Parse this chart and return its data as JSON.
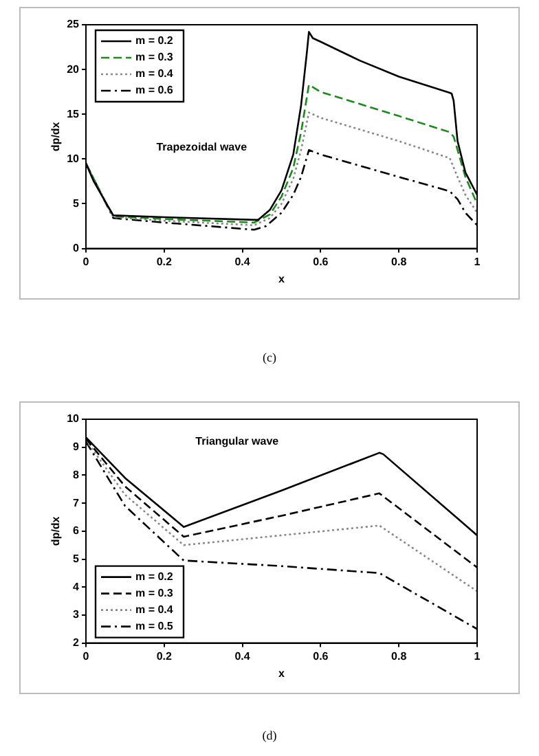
{
  "chart_data": [
    {
      "type": "line",
      "xlabel": "x",
      "ylabel": "dp/dx",
      "annotations": [
        "Trapezoidal wave",
        "(c)"
      ],
      "xlim": [
        0,
        1
      ],
      "ylim": [
        0,
        25
      ],
      "xticks": [
        0,
        0.2,
        0.4,
        0.6,
        0.8,
        1
      ],
      "yticks": [
        0,
        5,
        10,
        15,
        20,
        25
      ],
      "grid": false,
      "legend": "top left",
      "marker": "none",
      "series": [
        {
          "name": "m = 0.2",
          "color": "#000000",
          "line_style": "solid",
          "x": [
            0,
            0.02,
            0.05,
            0.07,
            0.2,
            0.43,
            0.44,
            0.47,
            0.5,
            0.53,
            0.55,
            0.565,
            0.57,
            0.58,
            0.6,
            0.7,
            0.8,
            0.93,
            0.935,
            0.94,
            0.95,
            0.97,
            1
          ],
          "values": [
            9.5,
            7.5,
            5.2,
            3.7,
            3.5,
            3.2,
            3.2,
            4.3,
            6.5,
            10.5,
            16,
            22,
            24.2,
            23.5,
            23.1,
            21,
            19.2,
            17.4,
            17.3,
            16.5,
            12,
            8.5,
            6
          ]
        },
        {
          "name": "m = 0.3",
          "color": "#1a8a1a",
          "line_style": "dashed",
          "x": [
            0,
            0.05,
            0.07,
            0.2,
            0.43,
            0.47,
            0.5,
            0.53,
            0.55,
            0.57,
            0.6,
            0.8,
            0.93,
            0.94,
            0.97,
            1
          ],
          "values": [
            9.5,
            5.2,
            3.6,
            3.3,
            2.9,
            3.8,
            5.8,
            9,
            13,
            18.3,
            17.5,
            14.8,
            13,
            12.5,
            8,
            5
          ]
        },
        {
          "name": "m = 0.4",
          "color": "#888888",
          "line_style": "dotted",
          "x": [
            0,
            0.07,
            0.2,
            0.43,
            0.47,
            0.5,
            0.53,
            0.55,
            0.57,
            0.6,
            0.8,
            0.93,
            0.95,
            0.97,
            1
          ],
          "values": [
            9.5,
            3.5,
            3.1,
            2.6,
            3.4,
            5,
            7.8,
            11,
            15.2,
            14.6,
            12,
            10.1,
            8,
            6,
            4
          ]
        },
        {
          "name": "m = 0.6",
          "color": "#000000",
          "line_style": "dashdot",
          "x": [
            0,
            0.07,
            0.2,
            0.43,
            0.46,
            0.5,
            0.53,
            0.55,
            0.57,
            0.6,
            0.8,
            0.93,
            0.95,
            0.97,
            1
          ],
          "values": [
            9.5,
            3.4,
            2.9,
            2.1,
            2.5,
            4,
            6,
            8,
            11,
            10.5,
            8,
            6.4,
            5.5,
            4,
            2.6
          ]
        }
      ]
    },
    {
      "type": "line",
      "xlabel": "x",
      "ylabel": "dp/dx",
      "annotations": [
        "Triangular wave",
        "(d)"
      ],
      "xlim": [
        0,
        1
      ],
      "ylim": [
        2,
        10
      ],
      "xticks": [
        0,
        0.2,
        0.4,
        0.6,
        0.8,
        1
      ],
      "yticks": [
        2,
        3,
        4,
        5,
        6,
        7,
        8,
        9,
        10
      ],
      "grid": false,
      "legend": "bottom left",
      "marker": "none",
      "series": [
        {
          "name": "m = 0.2",
          "color": "#000000",
          "line_style": "solid",
          "x": [
            0,
            0.1,
            0.25,
            0.5,
            0.75,
            0.76,
            1
          ],
          "values": [
            9.35,
            7.9,
            6.15,
            7.45,
            8.8,
            8.75,
            5.85
          ]
        },
        {
          "name": "m = 0.3",
          "color": "#000000",
          "line_style": "dashed",
          "x": [
            0,
            0.1,
            0.25,
            0.5,
            0.75,
            1
          ],
          "values": [
            9.3,
            7.6,
            5.8,
            6.55,
            7.35,
            4.7
          ]
        },
        {
          "name": "m = 0.4",
          "color": "#888888",
          "line_style": "dotted",
          "x": [
            0,
            0.1,
            0.25,
            0.5,
            0.75,
            1
          ],
          "values": [
            9.25,
            7.3,
            5.5,
            5.85,
            6.2,
            3.85
          ]
        },
        {
          "name": "m = 0.5",
          "color": "#000000",
          "line_style": "dashdot",
          "x": [
            0,
            0.1,
            0.25,
            0.5,
            0.75,
            1
          ],
          "values": [
            9.2,
            6.9,
            4.95,
            4.75,
            4.5,
            2.5
          ]
        }
      ]
    }
  ]
}
